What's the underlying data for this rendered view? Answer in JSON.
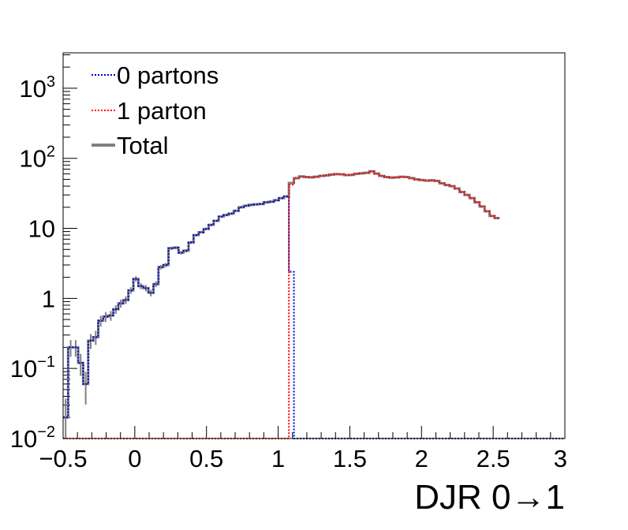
{
  "chart_data": {
    "type": "line",
    "xlabel": "DJR 0→1",
    "ylabel": "",
    "xlim": [
      -0.5,
      3.0
    ],
    "ylim": [
      0.01,
      3200
    ],
    "yscale": "log",
    "x_ticks": [
      {
        "value": -0.5,
        "label": "−0.5"
      },
      {
        "value": 0,
        "label": "0"
      },
      {
        "value": 0.5,
        "label": "0.5"
      },
      {
        "value": 1,
        "label": "1"
      },
      {
        "value": 1.5,
        "label": "1.5"
      },
      {
        "value": 2,
        "label": "2"
      },
      {
        "value": 2.5,
        "label": "2.5"
      },
      {
        "value": 3,
        "label": "3"
      }
    ],
    "y_ticks": [
      {
        "value": 0.01,
        "base": "10",
        "exp": "−2",
        "label": ""
      },
      {
        "value": 0.1,
        "base": "10",
        "exp": "−1",
        "label": ""
      },
      {
        "value": 1,
        "base": "",
        "exp": "",
        "label": "1"
      },
      {
        "value": 10,
        "base": "",
        "exp": "",
        "label": "10"
      },
      {
        "value": 100,
        "base": "10",
        "exp": "2",
        "label": ""
      },
      {
        "value": 1000,
        "base": "10",
        "exp": "3",
        "label": ""
      }
    ],
    "legend_position": "top-left",
    "grid": false,
    "bin_edges_start": -0.5,
    "bin_width": 0.035,
    "series": [
      {
        "name": "0 partons",
        "color": "#0000cc",
        "style": "dotted",
        "values": [
          0.02,
          0.2,
          0.2,
          0.12,
          0.06,
          0.25,
          0.28,
          0.48,
          0.55,
          0.57,
          0.7,
          0.85,
          0.95,
          1.3,
          1.9,
          1.5,
          1.4,
          1.2,
          1.6,
          2.8,
          3.0,
          5.2,
          5.3,
          4.5,
          4.8,
          6.3,
          8.0,
          8.8,
          9.8,
          11.2,
          12.8,
          14.7,
          15.5,
          16.2,
          17.8,
          20.0,
          21.0,
          21.6,
          22.0,
          22.3,
          23.5,
          24.0,
          25.2,
          27.0,
          28.5,
          2.4,
          0.01,
          0.01,
          0.01,
          0.01,
          0.01,
          0.01,
          0.01,
          0.01,
          0.01,
          0.01,
          0.01,
          0.01,
          0.01,
          0.01,
          0.01,
          0.01,
          0.01,
          0.01,
          0.01,
          0.01,
          0.01,
          0.01,
          0.01,
          0.01,
          0.01,
          0.01,
          0.01,
          0.01,
          0.01,
          0.01,
          0.01,
          0.01,
          0.01,
          0.01,
          0.01,
          0.01,
          0.01,
          0.01,
          0.01,
          0.01,
          0.01,
          0.01,
          0.01,
          0.01,
          0.01,
          0.01,
          0.01,
          0.01,
          0.01,
          0.01,
          0.01,
          0.01,
          0.01,
          0.01
        ]
      },
      {
        "name": "1 parton",
        "color": "#ff0000",
        "style": "dotted",
        "values": [
          0.01,
          0.01,
          0.01,
          0.01,
          0.01,
          0.01,
          0.01,
          0.01,
          0.01,
          0.01,
          0.01,
          0.01,
          0.01,
          0.01,
          0.01,
          0.01,
          0.01,
          0.01,
          0.01,
          0.01,
          0.01,
          0.01,
          0.01,
          0.01,
          0.01,
          0.01,
          0.01,
          0.01,
          0.01,
          0.01,
          0.01,
          0.01,
          0.01,
          0.01,
          0.01,
          0.01,
          0.01,
          0.01,
          0.01,
          0.01,
          0.01,
          0.01,
          0.01,
          0.01,
          0.01,
          42.0,
          52.0,
          55.0,
          54.0,
          53.5,
          54.5,
          56.0,
          57.0,
          58.5,
          59.5,
          59.0,
          57.5,
          58.0,
          60.0,
          61.0,
          62.0,
          65.0,
          60.5,
          56.0,
          54.0,
          53.0,
          53.5,
          54.5,
          54.0,
          52.0,
          50.0,
          49.0,
          48.0,
          48.5,
          47.5,
          44.0,
          41.5,
          40.0,
          37.0,
          33.0,
          30.0,
          27.0,
          23.5,
          20.5,
          17.5,
          15.0,
          14.0
        ]
      },
      {
        "name": "Total",
        "color": "#808080",
        "style": "solid",
        "values": [
          0.02,
          0.2,
          0.2,
          0.12,
          0.06,
          0.25,
          0.28,
          0.48,
          0.55,
          0.57,
          0.7,
          0.85,
          0.95,
          1.3,
          1.9,
          1.5,
          1.4,
          1.2,
          1.6,
          2.8,
          3.0,
          5.2,
          5.3,
          4.5,
          4.8,
          6.3,
          8.0,
          8.8,
          9.8,
          11.2,
          12.8,
          14.7,
          15.5,
          16.2,
          17.8,
          20.0,
          21.0,
          21.6,
          22.0,
          22.3,
          23.5,
          24.0,
          25.2,
          27.0,
          28.5,
          44.4,
          52.0,
          55.0,
          54.0,
          53.5,
          54.5,
          56.0,
          57.0,
          58.5,
          59.5,
          59.0,
          57.5,
          58.0,
          60.0,
          61.0,
          62.0,
          65.0,
          60.5,
          56.0,
          54.0,
          53.0,
          53.5,
          54.5,
          54.0,
          52.0,
          50.0,
          49.0,
          48.0,
          48.5,
          47.5,
          44.0,
          41.5,
          40.0,
          37.0,
          33.0,
          30.0,
          27.0,
          23.5,
          20.5,
          17.5,
          15.0,
          14.0
        ]
      }
    ]
  }
}
